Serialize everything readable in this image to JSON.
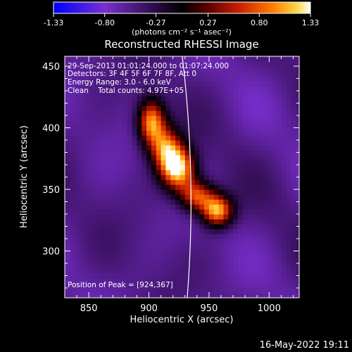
{
  "chart_data": {
    "type": "heatmap",
    "title": "Reconstructed RHESSI Image",
    "xlabel": "Heliocentric X (arcsec)",
    "ylabel": "Heliocentric Y (arcsec)",
    "xlim": [
      830,
      1025
    ],
    "ylim": [
      262,
      458
    ],
    "xticks": [
      850,
      900,
      950,
      1000
    ],
    "yticks": [
      300,
      350,
      400,
      450
    ],
    "colorbar": {
      "ticks": [
        "-1.33",
        "-0.80",
        "-0.27",
        "0.27",
        "0.80",
        "1.33"
      ],
      "values": [
        -1.33,
        -0.8,
        -0.27,
        0.27,
        0.8,
        1.33
      ],
      "range": [
        -1.33,
        1.33
      ],
      "unit_label": "(photons cm⁻² s⁻¹ asec⁻²)",
      "colormap": [
        "#0000ff",
        "#7a2fd0",
        "#2a0a44",
        "#000000",
        "#5a0000",
        "#c81e00",
        "#ff7a00",
        "#ffd84a",
        "#ffffff"
      ]
    },
    "annotations": [
      "29-Sep-2013 01:01:24.000 to 01:07:24.000",
      "Detectors: 3F 4F 5F 6F 7F 8F, Att 0",
      "Energy Range: 3.0 - 6.0 keV",
      "Clean    Total counts: 4.97E+05"
    ],
    "peak_label": "Position of Peak = [924,367]",
    "peak": [
      924,
      367
    ],
    "sources": [
      {
        "x": 902,
        "y": 405,
        "sx": 8,
        "sy": 13,
        "amp": 1.05
      },
      {
        "x": 914,
        "y": 384,
        "sx": 9,
        "sy": 12,
        "amp": 0.72
      },
      {
        "x": 924,
        "y": 367,
        "sx": 10,
        "sy": 12,
        "amp": 1.33
      },
      {
        "x": 940,
        "y": 345,
        "sx": 10,
        "sy": 9,
        "amp": 0.78
      },
      {
        "x": 957,
        "y": 333,
        "sx": 9,
        "sy": 9,
        "amp": 1.12
      }
    ],
    "background_level": -0.55,
    "limb": "solar limb arc from top-left to bottom center"
  },
  "footer": {
    "timestamp": "16-May-2022 19:11"
  }
}
